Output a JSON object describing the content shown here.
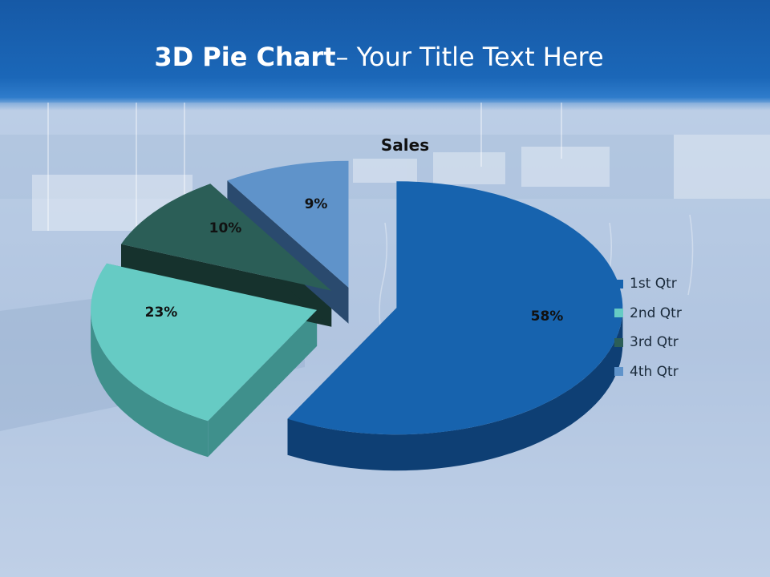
{
  "slide": {
    "title_bold": "3D Pie Chart",
    "title_rest": "– Your Title Text Here"
  },
  "chart_data": {
    "type": "pie",
    "title": "Sales",
    "categories": [
      "1st Qtr",
      "2nd Qtr",
      "3rd Qtr",
      "4th Qtr"
    ],
    "values": [
      58,
      23,
      10,
      9
    ],
    "data_labels": [
      "58%",
      "23%",
      "10%",
      "9%"
    ],
    "colors": [
      "#1763ae",
      "#66cbc4",
      "#2b5e57",
      "#5f93ca"
    ],
    "side_colors": [
      "#0e3f74",
      "#3f908c",
      "#16322d",
      "#2a4a6e"
    ],
    "legend_position": "right",
    "exploded": true,
    "three_d": true
  }
}
